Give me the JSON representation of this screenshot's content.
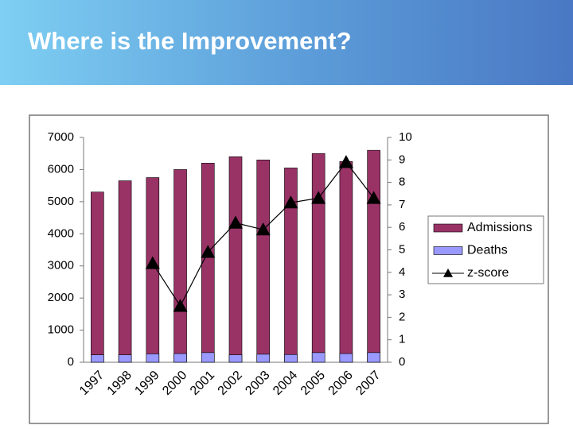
{
  "slide_title": "Where is the Improvement?",
  "chart_data": {
    "type": "bar",
    "categories": [
      "1997",
      "1998",
      "1999",
      "2000",
      "2001",
      "2002",
      "2003",
      "2004",
      "2005",
      "2006",
      "2007"
    ],
    "series": [
      {
        "name": "Admissions",
        "color": "#993366",
        "values": [
          5300,
          5650,
          5750,
          6000,
          6200,
          6400,
          6300,
          6050,
          6500,
          6250,
          6600
        ]
      },
      {
        "name": "Deaths",
        "color": "#9999ff",
        "values": [
          230,
          230,
          260,
          270,
          300,
          230,
          250,
          240,
          300,
          270,
          300
        ]
      },
      {
        "name": "z-score",
        "color": "#000000",
        "type": "line",
        "axis": "y2",
        "values": [
          null,
          null,
          4.4,
          2.5,
          4.9,
          6.2,
          5.9,
          7.1,
          7.3,
          8.9,
          7.3
        ]
      }
    ],
    "ylim": [
      0,
      7000
    ],
    "yticks": [
      0,
      1000,
      2000,
      3000,
      4000,
      5000,
      6000,
      7000
    ],
    "y2lim": [
      0,
      10
    ],
    "y2ticks": [
      0,
      1,
      2,
      3,
      4,
      5,
      6,
      7,
      8,
      9,
      10
    ],
    "legend": "right"
  }
}
